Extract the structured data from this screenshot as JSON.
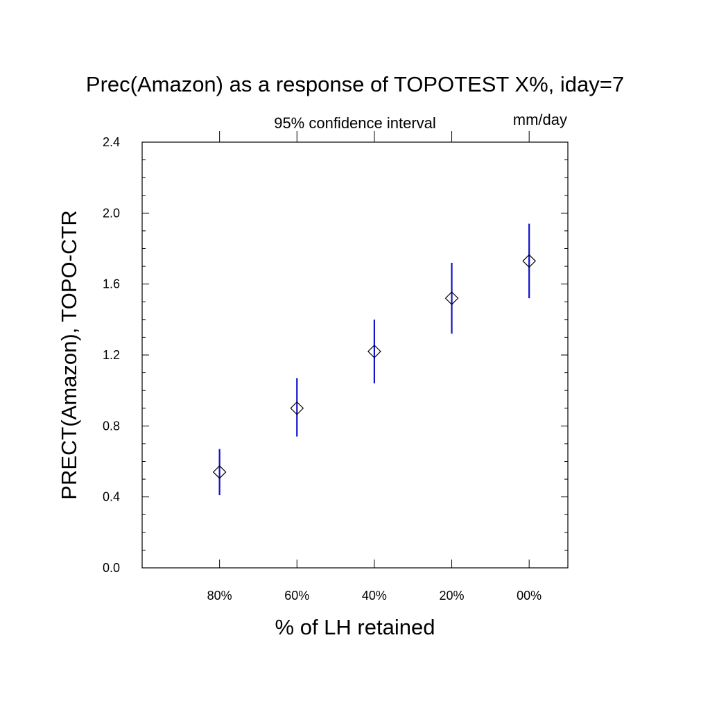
{
  "chart_data": {
    "type": "scatter",
    "title": "Prec(Amazon) as a response of TOPOTEST X%, iday=7",
    "subtitle_center": "95% confidence interval",
    "subtitle_right": "mm/day",
    "xlabel": "% of LH retained",
    "ylabel": "PRECT(Amazon), TOPO-CTR",
    "categories": [
      "80%",
      "60%",
      "40%",
      "20%",
      "00%"
    ],
    "values": [
      0.54,
      0.9,
      1.22,
      1.52,
      1.73
    ],
    "ci_low": [
      0.41,
      0.74,
      1.04,
      1.32,
      1.52
    ],
    "ci_high": [
      0.67,
      1.07,
      1.4,
      1.72,
      1.94
    ],
    "ylim": [
      0.0,
      2.4
    ],
    "yticks": [
      "0.0",
      "0.4",
      "0.8",
      "1.2",
      "1.6",
      "2.0",
      "2.4"
    ],
    "marker": "hollow-diamond",
    "errorbar_color": "#1010cc",
    "marker_color": "#000000",
    "grid": false
  }
}
